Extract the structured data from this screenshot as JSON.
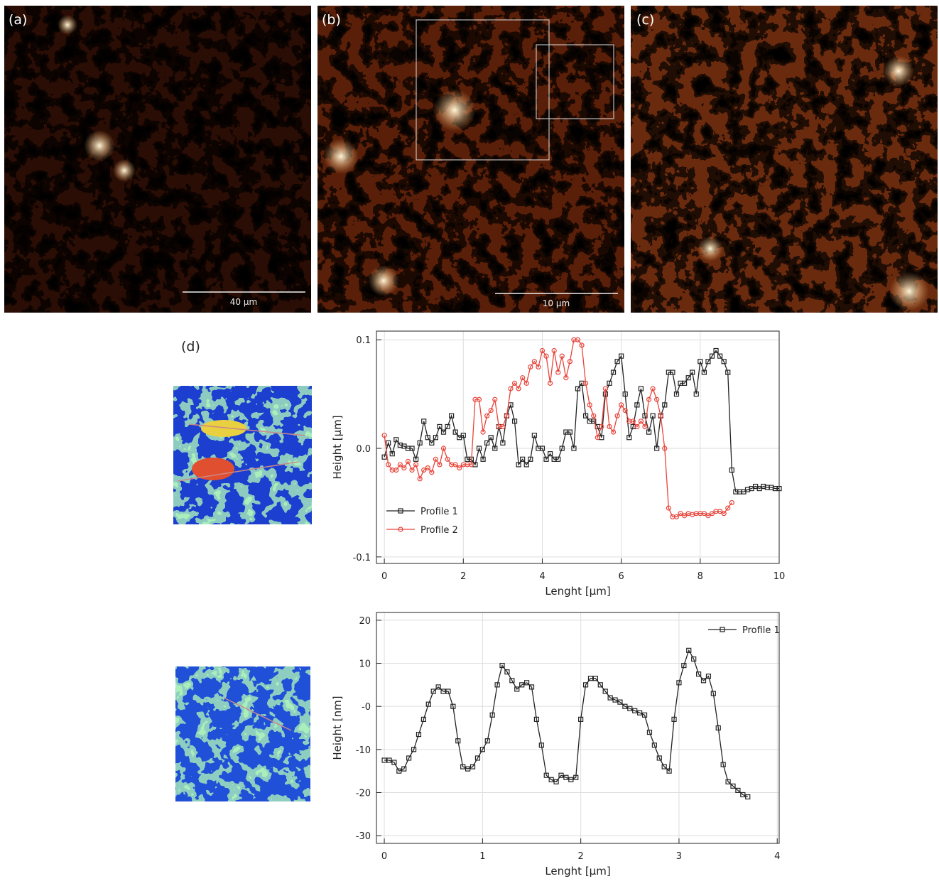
{
  "figure": {
    "panel_labels": [
      "(a)",
      "(b)",
      "(c)",
      "(d)"
    ],
    "scale_bars": [
      "40 μm",
      "10 μm"
    ]
  },
  "chart_data": [
    {
      "type": "line",
      "x_label": "Lenght [μm]",
      "y_label": "Height [μm]",
      "xlim": [
        -0.2,
        10
      ],
      "ylim": [
        -0.106,
        0.108
      ],
      "xticks": [
        0,
        2,
        4,
        6,
        8,
        10
      ],
      "yticks": [
        -0.1,
        {
          "value": 0,
          "label": "0.0"
        },
        0.1
      ],
      "grid": true,
      "legend": "lower left",
      "series": [
        {
          "name": "Profile 1",
          "color": "#222222",
          "marker": "square",
          "x": [
            0,
            0.1,
            0.2,
            0.3,
            0.4,
            0.5,
            0.6,
            0.7,
            0.8,
            0.9,
            1,
            1.1,
            1.2,
            1.3,
            1.4,
            1.5,
            1.6,
            1.7,
            1.8,
            1.9,
            2,
            2.1,
            2.2,
            2.3,
            2.4,
            2.5,
            2.6,
            2.7,
            2.8,
            2.9,
            3,
            3.1,
            3.2,
            3.3,
            3.4,
            3.5,
            3.6,
            3.7,
            3.8,
            3.9,
            4,
            4.1,
            4.2,
            4.3,
            4.4,
            4.5,
            4.6,
            4.7,
            4.8,
            4.9,
            5,
            5.1,
            5.2,
            5.3,
            5.4,
            5.5,
            5.6,
            5.7,
            5.8,
            5.9,
            6,
            6.1,
            6.2,
            6.3,
            6.4,
            6.5,
            6.6,
            6.7,
            6.8,
            6.9,
            7,
            7.1,
            7.2,
            7.3,
            7.4,
            7.5,
            7.6,
            7.7,
            7.8,
            7.9,
            8,
            8.1,
            8.2,
            8.3,
            8.4,
            8.5,
            8.6,
            8.7,
            8.8,
            8.9,
            9,
            9.1,
            9.2,
            9.3,
            9.4,
            9.5,
            9.6,
            9.7,
            9.8,
            9.9,
            10
          ],
          "values": [
            -0.008,
            0.005,
            -0.005,
            0.008,
            0.003,
            0.002,
            0,
            0,
            -0.01,
            0.005,
            0.025,
            0.01,
            0.005,
            0.01,
            0.02,
            0.015,
            0.02,
            0.03,
            0.015,
            0.01,
            0.012,
            -0.01,
            -0.01,
            -0.015,
            0,
            -0.01,
            0.005,
            0.01,
            0,
            0.02,
            0.005,
            0.03,
            0.04,
            0.025,
            -0.015,
            -0.01,
            -0.015,
            -0.01,
            0.012,
            0,
            0,
            -0.01,
            -0.005,
            -0.01,
            -0.01,
            0,
            0.015,
            0.015,
            0,
            0.055,
            0.06,
            0.03,
            0.025,
            0.025,
            0.02,
            0.01,
            0.05,
            0.06,
            0.07,
            0.08,
            0.085,
            0.05,
            0.01,
            0.02,
            0.04,
            0.055,
            0.03,
            0.015,
            0.03,
            0,
            0.03,
            0.04,
            0.07,
            0.07,
            0.05,
            0.06,
            0.06,
            0.065,
            0.07,
            0.05,
            0.08,
            0.07,
            0.08,
            0.085,
            0.09,
            0.085,
            0.08,
            0.07,
            -0.02,
            -0.04,
            -0.04,
            -0.04,
            -0.038,
            -0.037,
            -0.035,
            -0.037,
            -0.035,
            -0.036,
            -0.036,
            -0.037,
            -0.037
          ]
        },
        {
          "name": "Profile 2",
          "color": "#e8443a",
          "marker": "circle",
          "x": [
            0,
            0.1,
            0.2,
            0.3,
            0.4,
            0.5,
            0.6,
            0.7,
            0.8,
            0.9,
            1,
            1.1,
            1.2,
            1.3,
            1.4,
            1.5,
            1.6,
            1.7,
            1.8,
            1.9,
            2,
            2.1,
            2.2,
            2.3,
            2.4,
            2.5,
            2.6,
            2.7,
            2.8,
            2.9,
            3,
            3.1,
            3.2,
            3.3,
            3.4,
            3.5,
            3.6,
            3.7,
            3.8,
            3.9,
            4,
            4.1,
            4.2,
            4.3,
            4.4,
            4.5,
            4.6,
            4.7,
            4.8,
            4.9,
            5,
            5.1,
            5.2,
            5.3,
            5.4,
            5.5,
            5.6,
            5.7,
            5.8,
            5.9,
            6,
            6.1,
            6.2,
            6.3,
            6.4,
            6.5,
            6.6,
            6.7,
            6.8,
            6.9,
            7,
            7.1,
            7.2,
            7.3,
            7.4,
            7.5,
            7.6,
            7.7,
            7.8,
            7.9,
            8,
            8.1,
            8.2,
            8.3,
            8.4,
            8.5,
            8.6,
            8.7,
            8.8
          ],
          "values": [
            0.012,
            -0.015,
            -0.02,
            -0.02,
            -0.015,
            -0.018,
            -0.012,
            -0.02,
            -0.015,
            -0.028,
            -0.02,
            -0.018,
            -0.022,
            -0.01,
            -0.015,
            0,
            -0.01,
            -0.015,
            -0.015,
            -0.018,
            -0.015,
            -0.015,
            -0.015,
            0.045,
            0.045,
            0.015,
            0.03,
            0.035,
            0.045,
            0.02,
            0.02,
            0.03,
            0.055,
            0.06,
            0.055,
            0.065,
            0.06,
            0.075,
            0.08,
            0.075,
            0.09,
            0.085,
            0.06,
            0.09,
            0.07,
            0.085,
            0.065,
            0.08,
            0.1,
            0.1,
            0.095,
            0.06,
            0.04,
            0.03,
            0.01,
            0.02,
            0.055,
            0.02,
            0.015,
            0.03,
            0.04,
            0.035,
            0.025,
            0.025,
            0.02,
            0.025,
            0.02,
            0.045,
            0.055,
            0.045,
            0.03,
            0,
            -0.055,
            -0.063,
            -0.063,
            -0.06,
            -0.062,
            -0.06,
            -0.061,
            -0.06,
            -0.06,
            -0.06,
            -0.062,
            -0.06,
            -0.058,
            -0.058,
            -0.06,
            -0.055,
            -0.05
          ]
        }
      ]
    },
    {
      "type": "line",
      "x_label": "Lenght [μm]",
      "y_label": "Height [nm]",
      "xlim": [
        -0.08,
        4.02
      ],
      "ylim": [
        -31.8,
        21.8
      ],
      "xticks": [
        0,
        1,
        2,
        3,
        4
      ],
      "yticks": [
        -30,
        -20,
        -10,
        {
          "value": 0,
          "label": "-0"
        },
        10,
        20
      ],
      "grid": true,
      "legend": "upper right",
      "series": [
        {
          "name": "Profile 1",
          "color": "#222222",
          "marker": "square",
          "x": [
            0,
            0.05,
            0.1,
            0.15,
            0.2,
            0.25,
            0.3,
            0.35,
            0.4,
            0.45,
            0.5,
            0.55,
            0.6,
            0.65,
            0.7,
            0.75,
            0.8,
            0.85,
            0.9,
            0.95,
            1,
            1.05,
            1.1,
            1.15,
            1.2,
            1.25,
            1.3,
            1.35,
            1.4,
            1.45,
            1.5,
            1.55,
            1.6,
            1.65,
            1.7,
            1.75,
            1.8,
            1.85,
            1.9,
            1.95,
            2,
            2.05,
            2.1,
            2.15,
            2.2,
            2.25,
            2.3,
            2.35,
            2.4,
            2.45,
            2.5,
            2.55,
            2.6,
            2.65,
            2.7,
            2.75,
            2.8,
            2.85,
            2.9,
            2.95,
            3,
            3.05,
            3.1,
            3.15,
            3.2,
            3.25,
            3.3,
            3.35,
            3.4,
            3.45,
            3.5,
            3.55,
            3.6,
            3.65,
            3.7
          ],
          "values": [
            -12.5,
            -12.5,
            -13,
            -15,
            -14.5,
            -12,
            -10,
            -6.5,
            -3,
            0.5,
            3.5,
            4.5,
            3.5,
            3.5,
            0,
            -8,
            -14,
            -14.5,
            -14,
            -12,
            -10,
            -8,
            -2,
            5,
            9.5,
            8,
            6,
            4,
            5,
            5.5,
            4.5,
            -3,
            -9,
            -16,
            -17,
            -17.5,
            -16,
            -16.5,
            -17,
            -16.5,
            -3,
            5,
            6.5,
            6.5,
            5,
            3.5,
            2,
            1.5,
            1,
            0,
            -0.5,
            -1,
            -1.5,
            -2,
            -6,
            -9,
            -12,
            -14,
            -15,
            -3,
            5.5,
            9.5,
            13,
            11,
            7.5,
            6,
            7,
            3,
            -5,
            -13.5,
            -17.5,
            -18.5,
            -19.5,
            -20.5,
            -21
          ]
        }
      ]
    }
  ]
}
